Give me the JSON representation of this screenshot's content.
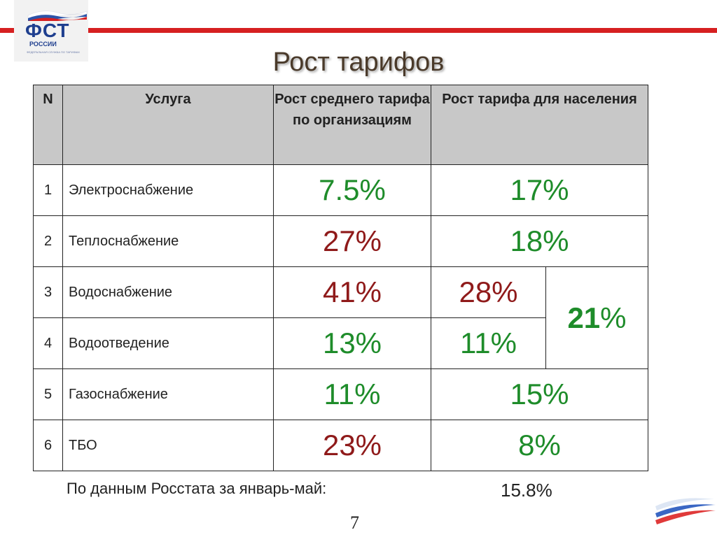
{
  "logo": {
    "brand": "ФСТ",
    "subtitle": "РОССИИ",
    "tagline": "ФЕДЕРАЛЬНАЯ СЛУЖБА ПО ТАРИФАМ"
  },
  "title": "Рост тарифов",
  "table": {
    "headers": {
      "n": "N",
      "service": "Услуга",
      "avg": "Рост среднего тарифа по организациям",
      "population": "Рост тарифа для населения"
    },
    "rows": [
      {
        "n": "1",
        "service": "Электроснабжение",
        "avg": "7.5%",
        "population": "17%"
      },
      {
        "n": "2",
        "service": "Теплоснабжение",
        "avg": "27%",
        "population": "18%"
      },
      {
        "n": "3",
        "service": "Водоснабжение",
        "avg": "41%",
        "population": "28%"
      },
      {
        "n": "4",
        "service": "Водоотведение",
        "avg": "13%",
        "population": "11%"
      },
      {
        "n": "5",
        "service": "Газоснабжение",
        "avg": "11%",
        "population": "15%"
      },
      {
        "n": "6",
        "service": "ТБО",
        "avg": "23%",
        "population": "8%"
      }
    ],
    "combined_water": {
      "number": "21",
      "unit": "%"
    }
  },
  "footer": {
    "note": "По данным Росстата за январь-май:",
    "value": "15.8%"
  },
  "page_number": "7",
  "colors": {
    "accent_red": "#d62021",
    "value_green": "#1e8c2a",
    "value_red": "#8f1a1a",
    "header_bg": "#c8c8c8"
  }
}
